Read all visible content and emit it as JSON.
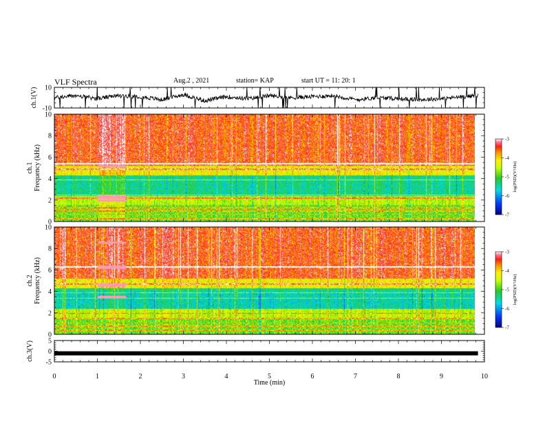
{
  "header": {
    "title": "VLF Spectra",
    "date": "Aug.2  , 2021",
    "station": "station= KAP",
    "start_ut": "start  UT  =   11: 20: 1"
  },
  "chart_data": [
    {
      "type": "line",
      "panel": "ch1-waveform",
      "ylabel": "ch.1(V)",
      "ylim": [
        -10,
        10
      ],
      "yticks": [
        "10",
        "-10"
      ],
      "xlim": [
        0,
        9.85
      ],
      "x": [
        0,
        0.5,
        1,
        1.5,
        2,
        2.5,
        3,
        3.5,
        4,
        4.5,
        5,
        5.5,
        6,
        6.5,
        7,
        7.5,
        8,
        8.5,
        9,
        9.5,
        9.8
      ],
      "values": [
        0,
        2,
        -1,
        2,
        1,
        -2,
        3,
        -3,
        1,
        -1,
        2,
        0,
        1,
        2,
        -2,
        0,
        -1,
        -2,
        -1,
        1,
        2
      ]
    },
    {
      "type": "heatmap",
      "panel": "ch1-spectrogram",
      "ylabel": "ch.1\nFrequency  (kHz)",
      "yticks": [
        "0",
        "2",
        "4",
        "6",
        "8",
        "10"
      ],
      "ylim": [
        0,
        10
      ],
      "xlim": [
        0,
        9.85
      ],
      "colorbar": {
        "label": "log(PSD)(V²/Hz)",
        "ticks": [
          "-3",
          "-4",
          "-5",
          "-6",
          "-7"
        ],
        "range": [
          -7,
          -3
        ]
      }
    },
    {
      "type": "heatmap",
      "panel": "ch2-spectrogram",
      "ylabel": "ch.2\nFrequency  (kHz)",
      "yticks": [
        "0",
        "2",
        "4",
        "6",
        "8",
        "10"
      ],
      "ylim": [
        0,
        10
      ],
      "xlim": [
        0,
        9.85
      ],
      "colorbar": {
        "label": "log(PSD)(V²/Hz)",
        "ticks": [
          "-3",
          "-4",
          "-5",
          "-6",
          "-7"
        ],
        "range": [
          -7,
          -3
        ]
      }
    },
    {
      "type": "line",
      "panel": "ch3-waveform",
      "ylabel": "ch.3(V)",
      "ylim": [
        -5,
        5
      ],
      "yticks": [
        "5",
        "0",
        "-5"
      ],
      "xlim": [
        0,
        9.85
      ],
      "x": [
        0,
        9.85
      ],
      "values": [
        -1,
        -1
      ],
      "xlabel": "Time  (min)",
      "xticks": [
        "0",
        "1",
        "2",
        "3",
        "4",
        "5",
        "6",
        "7",
        "8",
        "9",
        "10"
      ]
    }
  ]
}
